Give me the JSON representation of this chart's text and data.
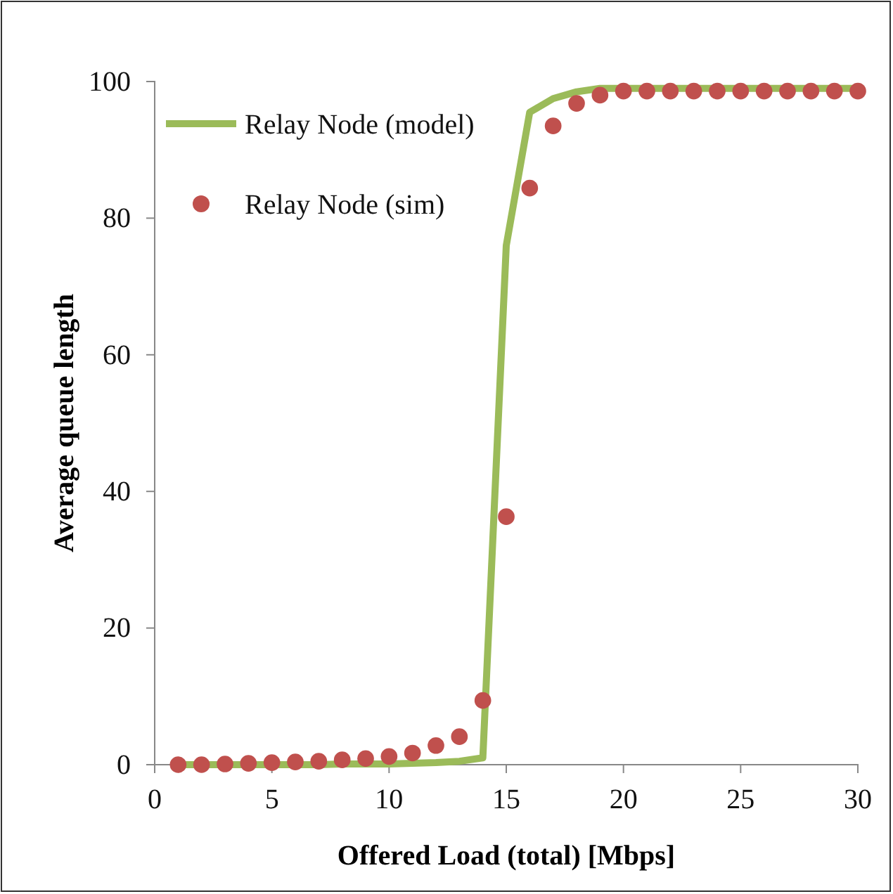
{
  "chart_data": {
    "type": "line",
    "xlabel": "Offered Load (total) [Mbps]",
    "ylabel": "Average queue length",
    "x": [
      1,
      2,
      3,
      4,
      5,
      6,
      7,
      8,
      9,
      10,
      11,
      12,
      13,
      14,
      15,
      16,
      17,
      18,
      19,
      20,
      21,
      22,
      23,
      24,
      25,
      26,
      27,
      28,
      29,
      30
    ],
    "series": [
      {
        "name": "Relay Node (model)",
        "color": "#9bbb59",
        "values": [
          0,
          0,
          0,
          0,
          0,
          0,
          0,
          0.1,
          0.1,
          0.1,
          0.2,
          0.3,
          0.5,
          1,
          76,
          95.5,
          97.5,
          98.5,
          99,
          99,
          99,
          99,
          99,
          99,
          99,
          99,
          99,
          99,
          99,
          99
        ]
      },
      {
        "name": "Relay Node (sim)",
        "type": "scatter",
        "marker": "circle",
        "color": "#c0504d",
        "values": [
          0,
          0,
          0.1,
          0.2,
          0.3,
          0.4,
          0.5,
          0.7,
          0.9,
          1.2,
          1.7,
          2.8,
          4.1,
          9.4,
          36.3,
          84.4,
          93.5,
          96.8,
          98,
          98.6,
          98.6,
          98.6,
          98.6,
          98.6,
          98.6,
          98.6,
          98.6,
          98.6,
          98.6,
          98.6
        ]
      }
    ],
    "xlim": [
      0,
      30
    ],
    "xticks": [
      0,
      5,
      10,
      15,
      20,
      25,
      30
    ],
    "ylim": [
      0,
      100
    ],
    "yticks": [
      0,
      20,
      40,
      60,
      80,
      100
    ],
    "grid": false,
    "legend": "top left"
  }
}
